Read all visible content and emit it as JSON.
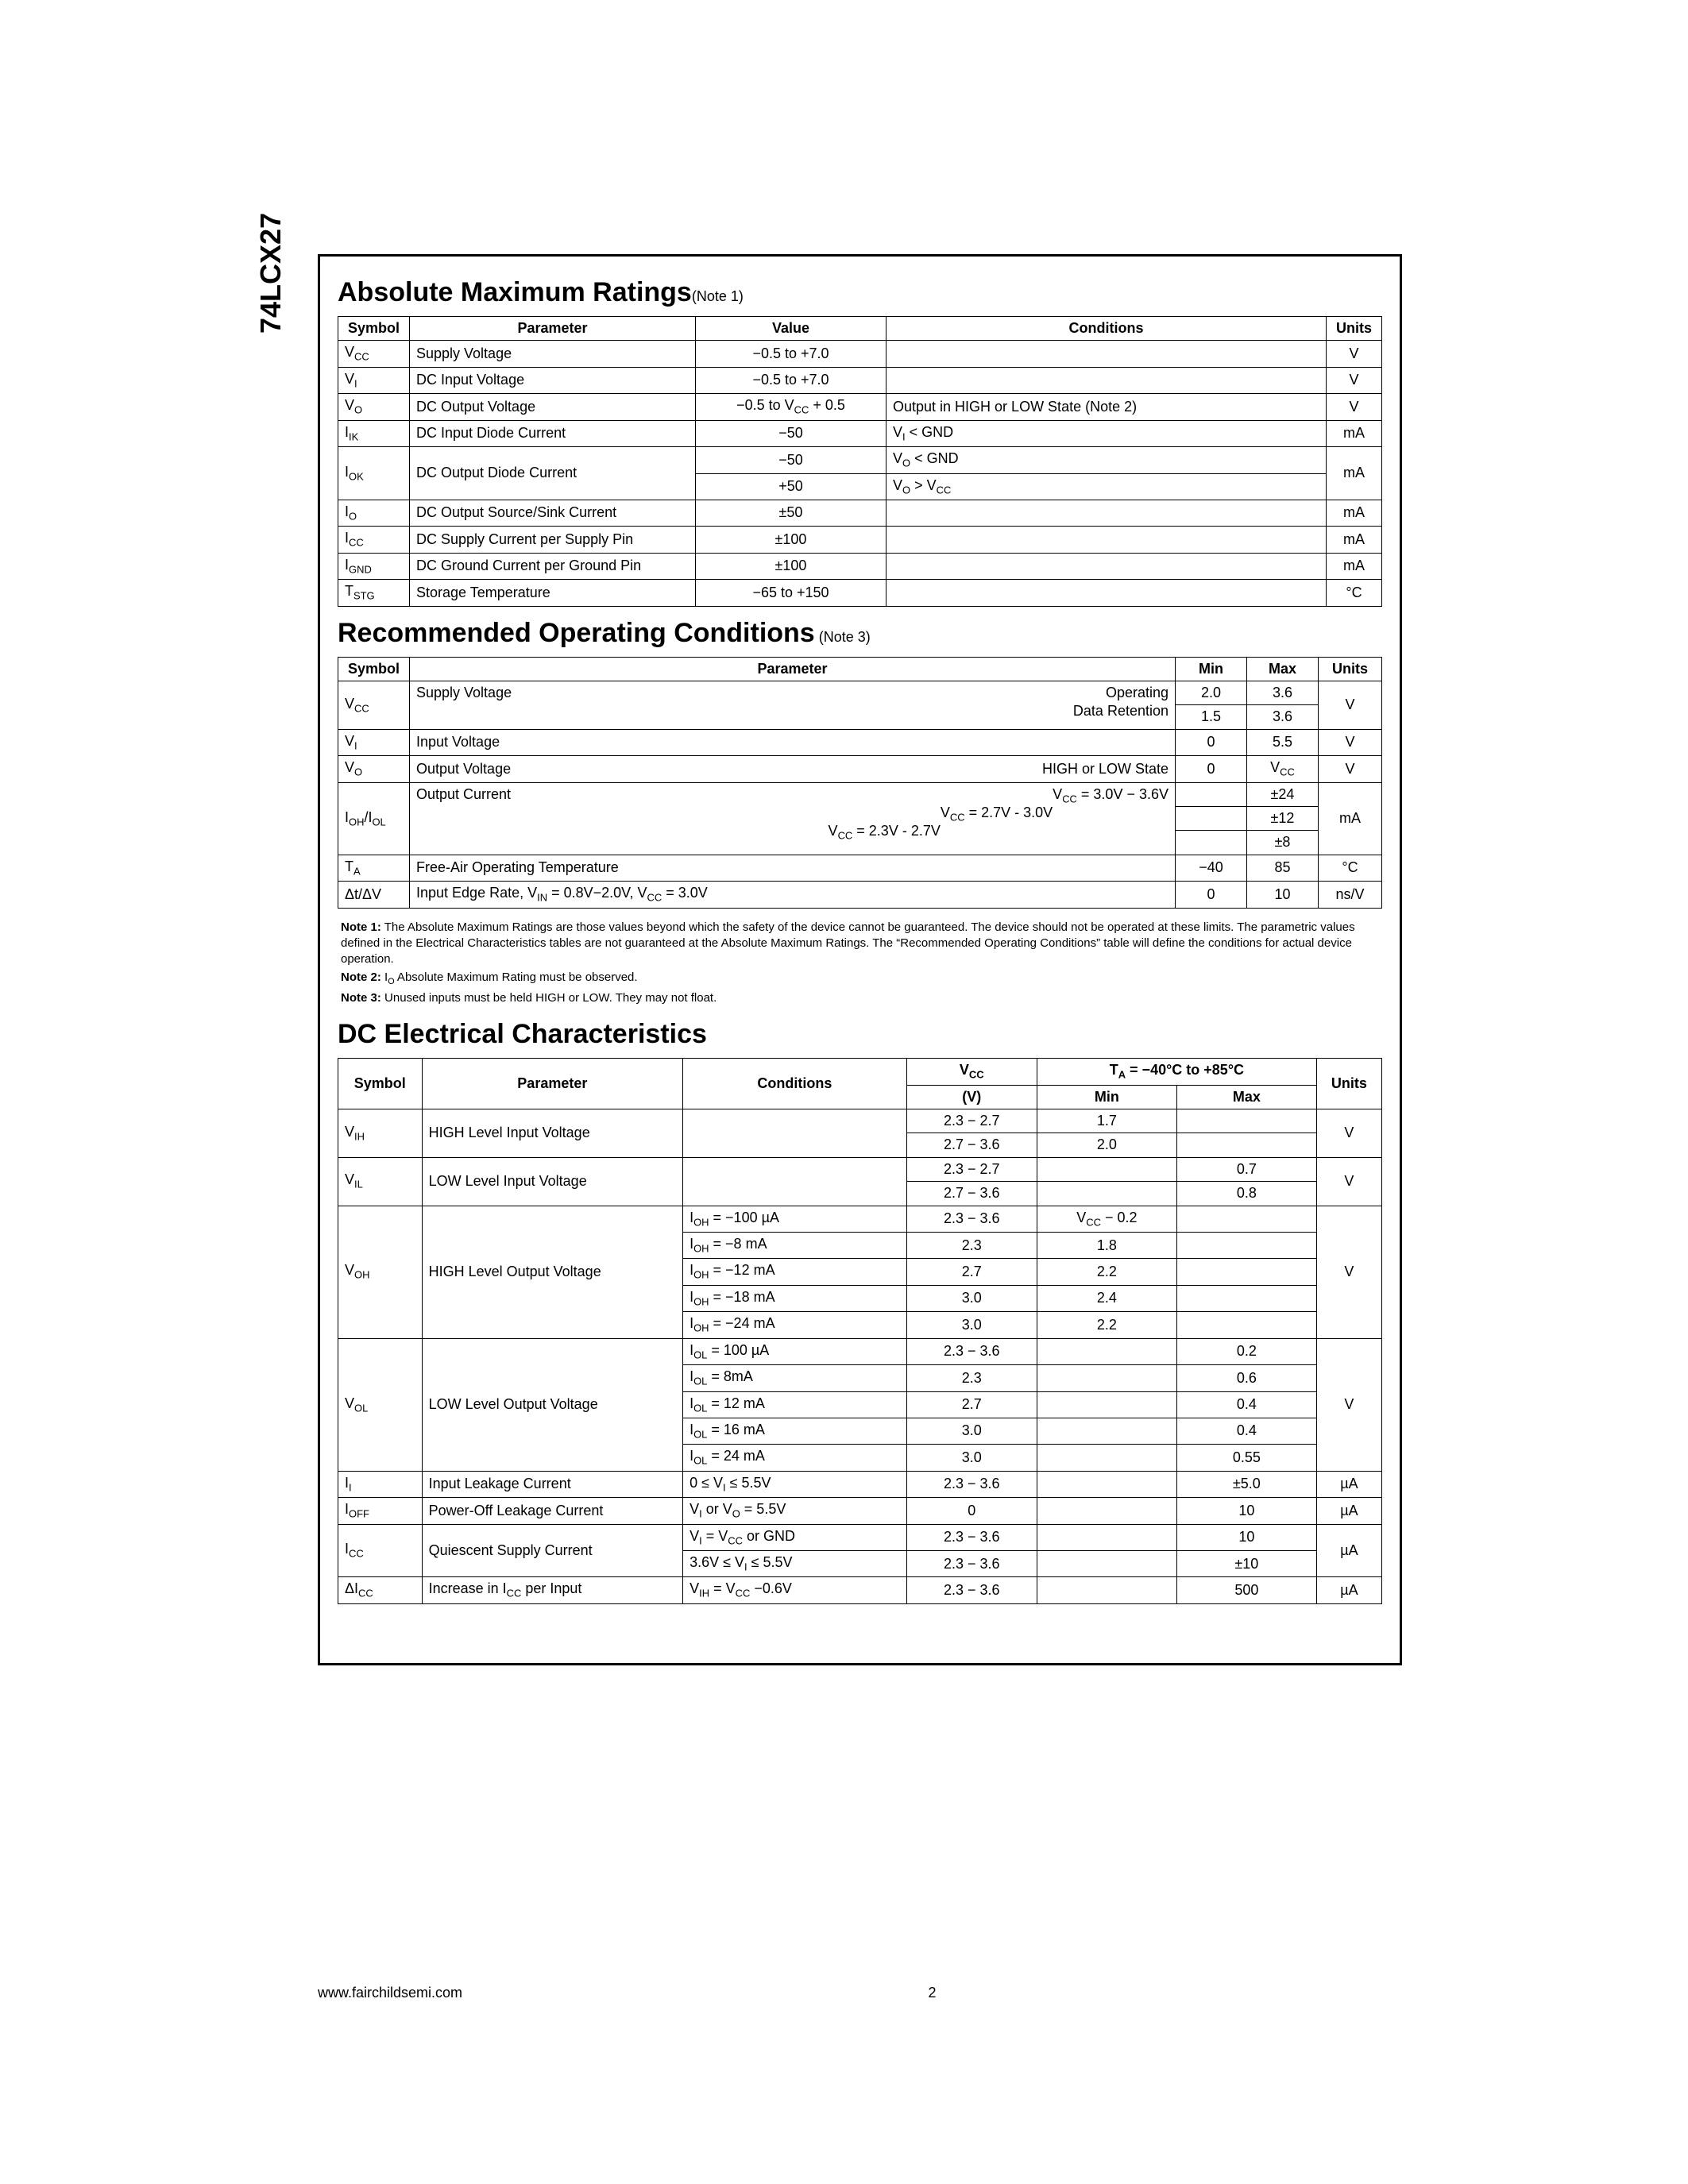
{
  "part_number": "74LCX27",
  "footer": {
    "url": "www.fairchildsemi.com",
    "page": "2"
  },
  "amr": {
    "title": "Absolute Maximum Ratings",
    "title_note": "(Note 1)",
    "headers": [
      "Symbol",
      "Parameter",
      "Value",
      "Conditions",
      "Units"
    ],
    "rows": [
      {
        "sym": "V",
        "symsub": "CC",
        "param": "Supply Voltage",
        "value": "−0.5 to +7.0",
        "cond": "",
        "units": "V"
      },
      {
        "sym": "V",
        "symsub": "I",
        "param": "DC Input Voltage",
        "value": "−0.5 to +7.0",
        "cond": "",
        "units": "V"
      },
      {
        "sym": "V",
        "symsub": "O",
        "param": "DC Output Voltage",
        "value_html": "−0.5 to V<span class='sub'>CC</span> + 0.5",
        "cond": "Output in HIGH or LOW State (Note 2)",
        "units": "V"
      },
      {
        "sym": "I",
        "symsub": "IK",
        "param": "DC Input Diode Current",
        "value": "−50",
        "cond_html": "V<span class='sub'>I</span> &lt; GND",
        "units": "mA"
      },
      {
        "sym": "I",
        "symsub": "OK",
        "param": "DC Output Diode Current",
        "value_lines": [
          "−50",
          "+50"
        ],
        "cond_lines_html": [
          "V<span class='sub'>O</span> &lt; GND",
          "V<span class='sub'>O</span> &gt; V<span class='sub'>CC</span>"
        ],
        "units": "mA"
      },
      {
        "sym": "I",
        "symsub": "O",
        "param": "DC Output Source/Sink Current",
        "value": "±50",
        "cond": "",
        "units": "mA"
      },
      {
        "sym": "I",
        "symsub": "CC",
        "param": "DC Supply Current per Supply Pin",
        "value": "±100",
        "cond": "",
        "units": "mA"
      },
      {
        "sym": "I",
        "symsub": "GND",
        "param": "DC Ground Current per Ground Pin",
        "value": "±100",
        "cond": "",
        "units": "mA"
      },
      {
        "sym": "T",
        "symsub": "STG",
        "param": "Storage Temperature",
        "value": "−65 to +150",
        "cond": "",
        "units": "°C"
      }
    ]
  },
  "roc": {
    "title": "Recommended Operating Conditions",
    "title_note": " (Note 3)",
    "headers": [
      "Symbol",
      "Parameter",
      "Min",
      "Max",
      "Units"
    ],
    "rows": [
      {
        "sym": "V",
        "symsub": "CC",
        "param": "Supply Voltage",
        "rights": [
          "Operating",
          "Data Retention"
        ],
        "mins": [
          "2.0",
          "1.5"
        ],
        "maxs": [
          "3.6",
          "3.6"
        ],
        "units": "V"
      },
      {
        "sym": "V",
        "symsub": "I",
        "param": "Input Voltage",
        "min": "0",
        "max": "5.5",
        "units": "V"
      },
      {
        "sym": "V",
        "symsub": "O",
        "param": "Output Voltage",
        "right": "HIGH or LOW State",
        "min": "0",
        "max_html": "V<span class='sub'>CC</span>",
        "units": "V"
      },
      {
        "sym_html": "I<span class='sub'>OH</span>/I<span class='sub'>OL</span>",
        "param": "Output Current",
        "rights_html": [
          "V<span class='sub'>CC</span> = 3.0V − 3.6V",
          "V<span class='sub'>CC</span> = 2.7V - 3.0V",
          "V<span class='sub'>CC</span> = 2.3V - 2.7V"
        ],
        "mins": [
          "",
          "",
          ""
        ],
        "maxs": [
          "±24",
          "±12",
          "±8"
        ],
        "units": "mA"
      },
      {
        "sym": "T",
        "symsub": "A",
        "param": "Free-Air Operating Temperature",
        "min": "−40",
        "max": "85",
        "units": "°C"
      },
      {
        "sym_plain": "Δt/ΔV",
        "param_html": "Input Edge Rate, V<span class='sub'>IN</span> = 0.8V−2.0V, V<span class='sub'>CC</span> = 3.0V",
        "min": "0",
        "max": "10",
        "units": "ns/V"
      }
    ]
  },
  "notes": {
    "n1_label": "Note 1:",
    "n1": "The Absolute Maximum Ratings are those values beyond which the safety of the device cannot be guaranteed. The device should not be operated at these limits. The parametric values defined in the Electrical Characteristics tables are not guaranteed at the Absolute Maximum Ratings. The “Recommended Operating Conditions” table will define the conditions for actual device operation.",
    "n2_label": "Note 2:",
    "n2_html": "I<span class='sub'>O</span> Absolute Maximum Rating must be observed.",
    "n3_label": "Note 3:",
    "n3": "Unused inputs must be held HIGH or LOW. They may not float."
  },
  "dc": {
    "title": "DC Electrical Characteristics",
    "head": {
      "symbol": "Symbol",
      "parameter": "Parameter",
      "conditions": "Conditions",
      "vcc_html": "V<span class='sub'>CC</span>",
      "vcc_unit": "(V)",
      "ta_html": "T<span class='sub'>A</span> = −40°C to +85°C",
      "min": "Min",
      "max": "Max",
      "units": "Units"
    },
    "rows": [
      {
        "sym": "V",
        "symsub": "IH",
        "param": "HIGH Level Input Voltage",
        "cond": "",
        "lines": [
          {
            "vcc": "2.3 − 2.7",
            "min": "1.7",
            "max": ""
          },
          {
            "vcc": "2.7 − 3.6",
            "min": "2.0",
            "max": ""
          }
        ],
        "units": "V"
      },
      {
        "sym": "V",
        "symsub": "IL",
        "param": "LOW Level Input Voltage",
        "cond": "",
        "lines": [
          {
            "vcc": "2.3 − 2.7",
            "min": "",
            "max": "0.7"
          },
          {
            "vcc": "2.7 − 3.6",
            "min": "",
            "max": "0.8"
          }
        ],
        "units": "V"
      },
      {
        "sym": "V",
        "symsub": "OH",
        "param": "HIGH Level Output Voltage",
        "lines": [
          {
            "cond_html": "I<span class='sub'>OH</span> = −100 µA",
            "vcc": "2.3 − 3.6",
            "min_html": "V<span class='sub'>CC</span> − 0.2",
            "max": ""
          },
          {
            "cond_html": "I<span class='sub'>OH</span> = −8 mA",
            "vcc": "2.3",
            "min": "1.8",
            "max": ""
          },
          {
            "cond_html": "I<span class='sub'>OH</span> = −12 mA",
            "vcc": "2.7",
            "min": "2.2",
            "max": ""
          },
          {
            "cond_html": "I<span class='sub'>OH</span> = −18 mA",
            "vcc": "3.0",
            "min": "2.4",
            "max": ""
          },
          {
            "cond_html": "I<span class='sub'>OH</span> = −24 mA",
            "vcc": "3.0",
            "min": "2.2",
            "max": ""
          }
        ],
        "units": "V"
      },
      {
        "sym": "V",
        "symsub": "OL",
        "param": "LOW Level Output Voltage",
        "lines": [
          {
            "cond_html": "I<span class='sub'>OL</span> = 100 µA",
            "vcc": "2.3 − 3.6",
            "min": "",
            "max": "0.2"
          },
          {
            "cond_html": "I<span class='sub'>OL</span> = 8mA",
            "vcc": "2.3",
            "min": "",
            "max": "0.6"
          },
          {
            "cond_html": "I<span class='sub'>OL</span> = 12 mA",
            "vcc": "2.7",
            "min": "",
            "max": "0.4"
          },
          {
            "cond_html": "I<span class='sub'>OL</span> = 16 mA",
            "vcc": "3.0",
            "min": "",
            "max": "0.4"
          },
          {
            "cond_html": "I<span class='sub'>OL</span> = 24 mA",
            "vcc": "3.0",
            "min": "",
            "max": "0.55"
          }
        ],
        "units": "V"
      },
      {
        "sym": "I",
        "symsub": "I",
        "param": "Input Leakage Current",
        "lines": [
          {
            "cond_html": "0 ≤ V<span class='sub'>I</span> ≤ 5.5V",
            "vcc": "2.3 − 3.6",
            "min": "",
            "max": "±5.0"
          }
        ],
        "units": "µA"
      },
      {
        "sym": "I",
        "symsub": "OFF",
        "param": "Power-Off Leakage Current",
        "lines": [
          {
            "cond_html": "V<span class='sub'>I</span> or V<span class='sub'>O</span> = 5.5V",
            "vcc": "0",
            "min": "",
            "max": "10"
          }
        ],
        "units": "µA"
      },
      {
        "sym": "I",
        "symsub": "CC",
        "param": "Quiescent Supply Current",
        "lines": [
          {
            "cond_html": "V<span class='sub'>I</span> = V<span class='sub'>CC</span> or GND",
            "vcc": "2.3 − 3.6",
            "min": "",
            "max": "10"
          },
          {
            "cond_html": "3.6V ≤ V<span class='sub'>I</span> ≤ 5.5V",
            "vcc": "2.3 − 3.6",
            "min": "",
            "max": "±10"
          }
        ],
        "units": "µA"
      },
      {
        "sym_html": "ΔI<span class='sub'>CC</span>",
        "param_html": "Increase in I<span class='sub'>CC</span> per Input",
        "lines": [
          {
            "cond_html": "V<span class='sub'>IH</span> = V<span class='sub'>CC</span> −0.6V",
            "vcc": "2.3 − 3.6",
            "min": "",
            "max": "500"
          }
        ],
        "units": "µA"
      }
    ]
  },
  "col_widths": {
    "amr": [
      "90px",
      "360px",
      "240px",
      "auto",
      "70px"
    ],
    "roc": [
      "90px",
      "auto",
      "90px",
      "90px",
      "80px"
    ],
    "dc": [
      "90px",
      "280px",
      "240px",
      "140px",
      "150px",
      "150px",
      "70px"
    ]
  }
}
